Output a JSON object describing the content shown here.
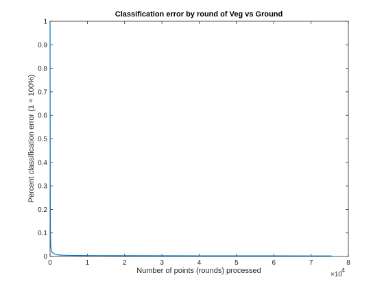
{
  "chart_data": {
    "type": "line",
    "title": "Classification error by round of Veg vs Ground",
    "xlabel": "Number of points (rounds) processed",
    "ylabel": "Percent classification error (1 = 100%)",
    "x_multiplier_label": "×10",
    "x_multiplier_exponent": "4",
    "xlim": [
      0,
      8
    ],
    "ylim": [
      0,
      1
    ],
    "x_ticks": [
      "0",
      "1",
      "2",
      "3",
      "4",
      "5",
      "6",
      "7",
      "8"
    ],
    "y_ticks": [
      "0",
      "0.1",
      "0.2",
      "0.3",
      "0.4",
      "0.5",
      "0.6",
      "0.7",
      "0.8",
      "0.9",
      "1"
    ],
    "grid": false,
    "line_color": "#0072BD",
    "series": [
      {
        "x": [
          0,
          0.005,
          0.01,
          0.02,
          0.04,
          0.07,
          0.1,
          0.15,
          0.2,
          0.3,
          0.5,
          0.8,
          1.0,
          1.5,
          2.0,
          3.0,
          4.0,
          5.0,
          6.0,
          7.0,
          7.55
        ],
        "values": [
          1.0,
          0.3,
          0.1,
          0.04,
          0.022,
          0.015,
          0.012,
          0.009,
          0.007,
          0.0055,
          0.0045,
          0.004,
          0.0038,
          0.0035,
          0.0033,
          0.003,
          0.0028,
          0.0026,
          0.0025,
          0.0024,
          0.0023
        ]
      }
    ]
  }
}
